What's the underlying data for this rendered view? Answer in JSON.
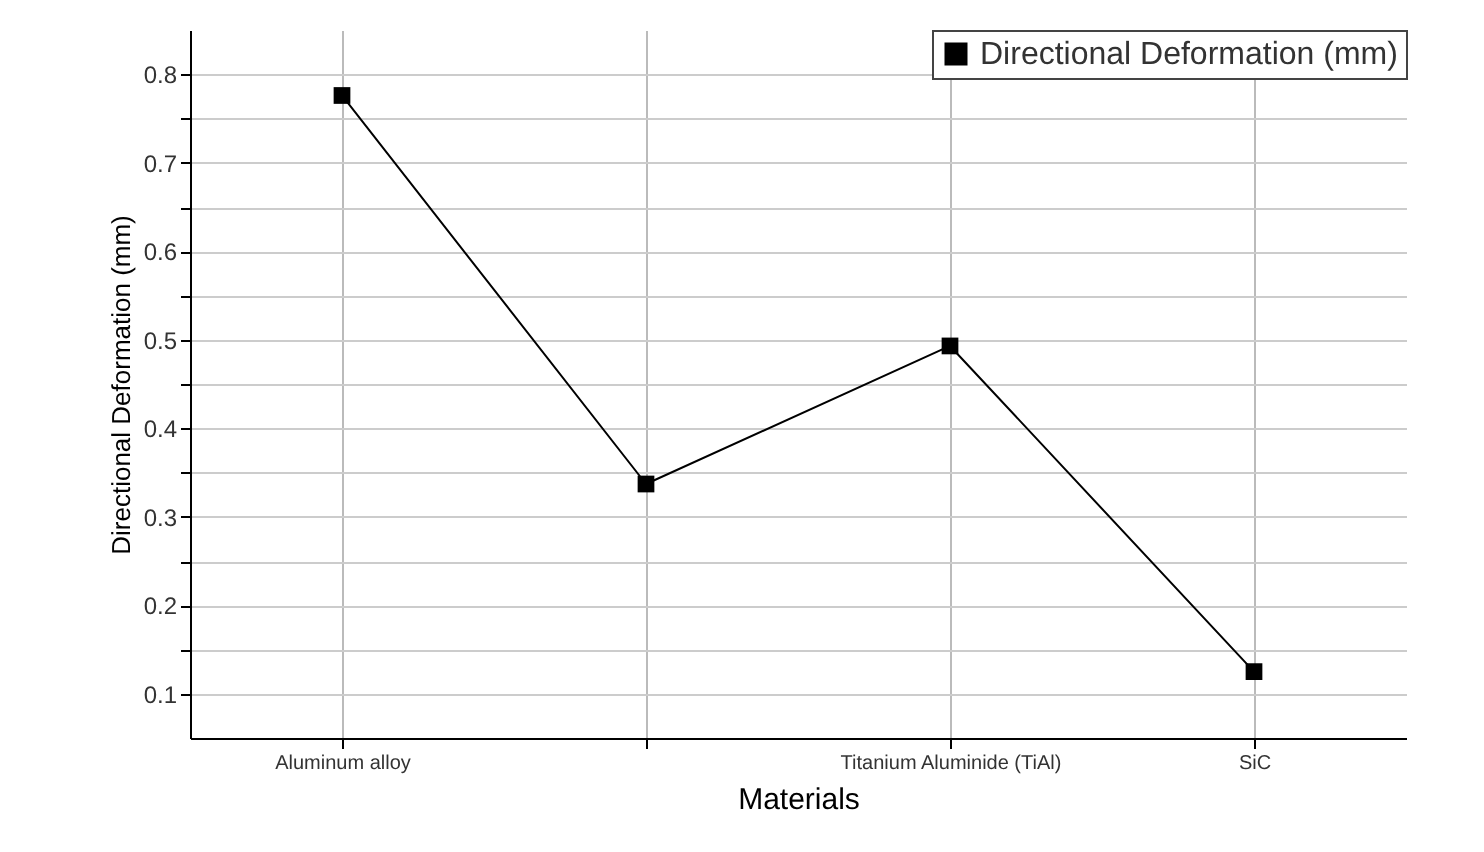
{
  "chart_data": {
    "type": "line",
    "xlabel": "Materials",
    "ylabel": "Directional Deformation (mm)",
    "categories": [
      "Aluminum alloy",
      null,
      "Titanium Aluminide (TiAl)",
      "SiC"
    ],
    "series": [
      {
        "name": "Directional Deformation (mm)",
        "color": "#000000",
        "values": [
          0.776,
          0.337,
          0.493,
          0.125
        ]
      }
    ],
    "ylim": [
      0.05,
      0.85
    ],
    "yticks": [
      0.1,
      {
        "value": 0.15,
        "label": null
      },
      0.2,
      {
        "value": 0.25,
        "label": null
      },
      0.3,
      {
        "value": 0.35,
        "label": null
      },
      0.4,
      {
        "value": 0.45,
        "label": null
      },
      0.5,
      {
        "value": 0.55,
        "label": null
      },
      0.6,
      {
        "value": 0.65,
        "label": null
      },
      0.7,
      {
        "value": 0.75,
        "label": null
      },
      0.8
    ],
    "grid": true,
    "legend": "top right",
    "marker": "square",
    "line_style": "solid"
  }
}
